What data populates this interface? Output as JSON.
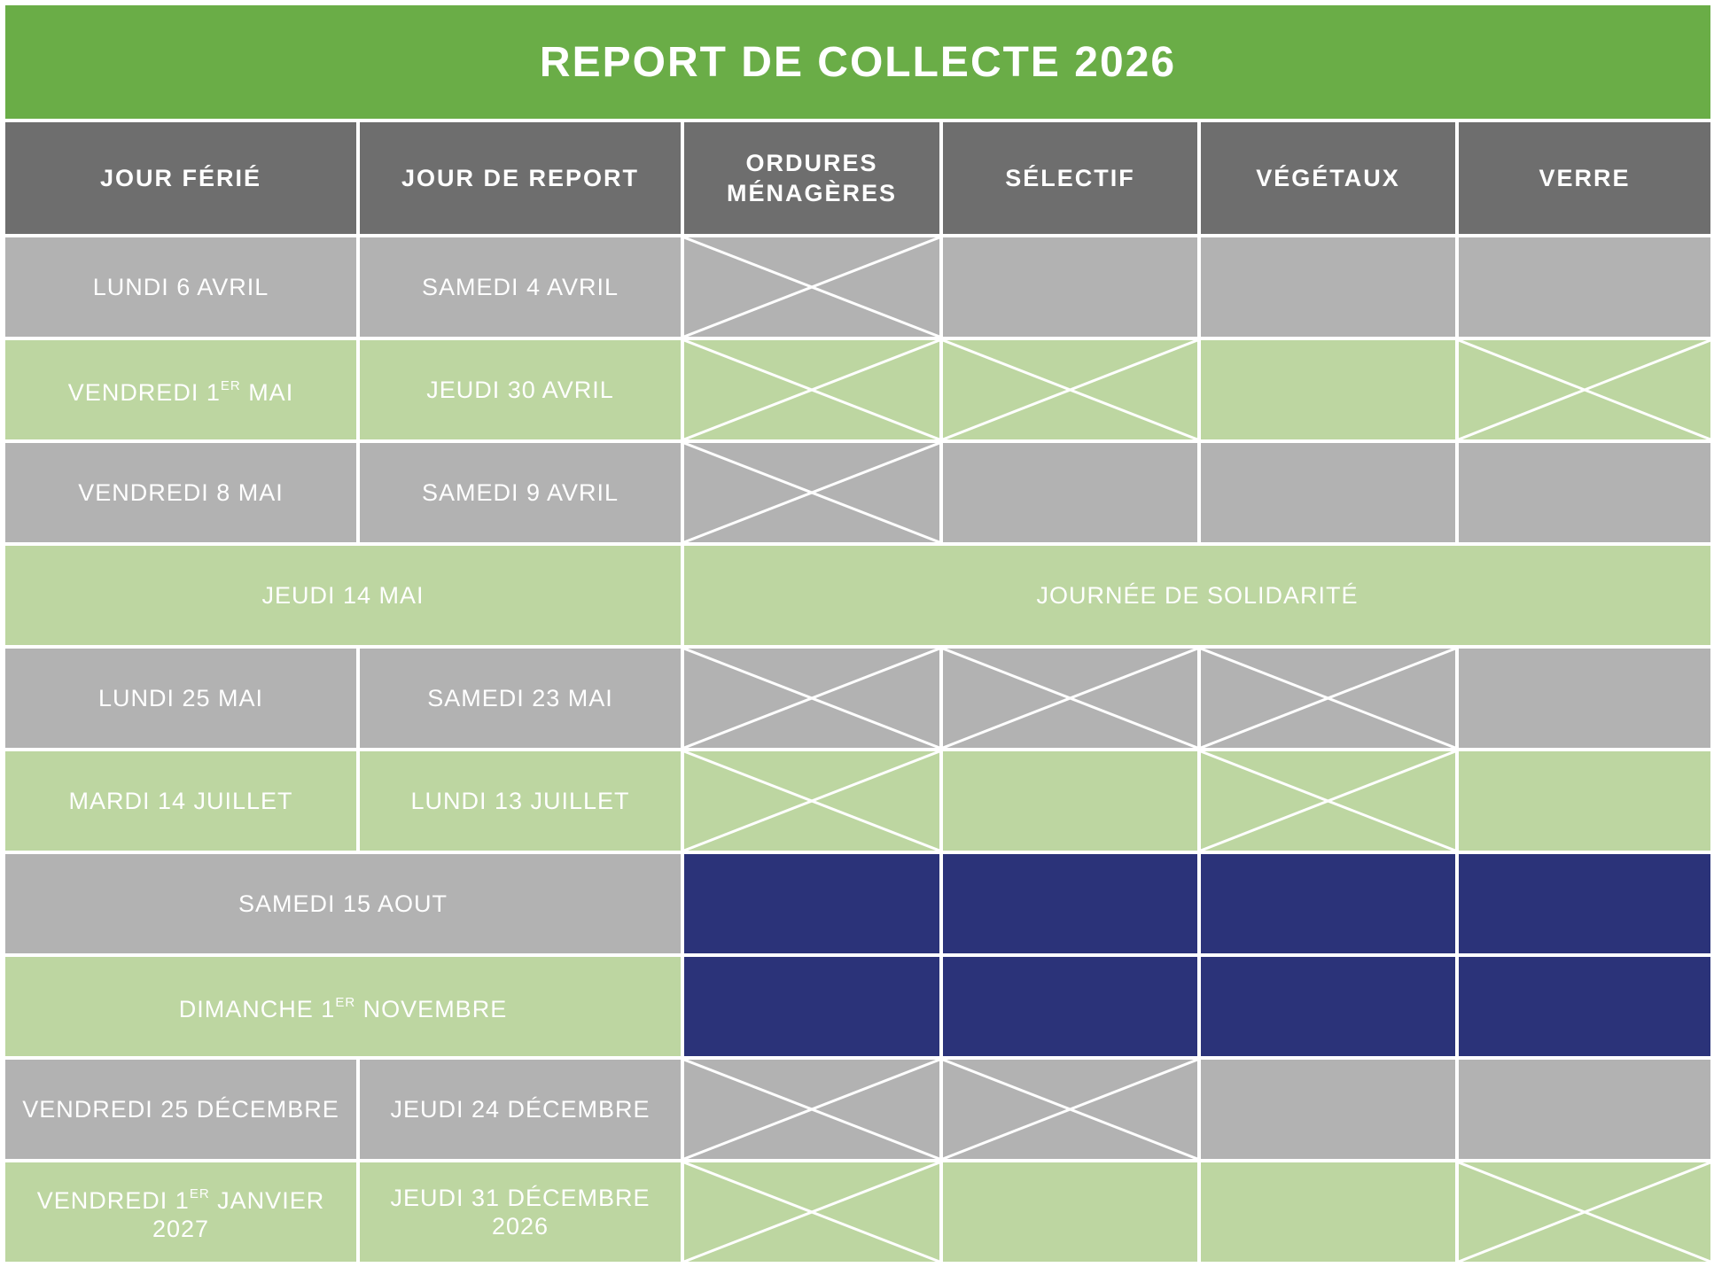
{
  "title": "REPORT DE COLLECTE 2026",
  "colors": {
    "banner": "#6aad47",
    "header": "#6e6e6e",
    "row_gray": "#b2b2b2",
    "row_green": "#bdd6a1",
    "no_collection": "#2b3379",
    "text": "#ffffff"
  },
  "headers": {
    "jour_ferie": "JOUR FÉRIÉ",
    "jour_report": "JOUR DE REPORT",
    "ordures": "ORDURES MÉNAGÈRES",
    "selectif": "SÉLECTIF",
    "vegetaux": "VÉGÉTAUX",
    "verre": "VERRE"
  },
  "rows": [
    {
      "ferie": "LUNDI 6 AVRIL",
      "report": "SAMEDI 4 AVRIL",
      "marks": [
        true,
        false,
        false,
        false
      ]
    },
    {
      "ferie_a": "VENDREDI 1",
      "ferie_sup": "ER",
      "ferie_b": " MAI",
      "report": "JEUDI 30 AVRIL",
      "marks": [
        true,
        true,
        false,
        true
      ]
    },
    {
      "ferie": "VENDREDI 8 MAI",
      "report": "SAMEDI 9 AVRIL",
      "marks": [
        true,
        false,
        false,
        false
      ]
    },
    {
      "ferie": "JEUDI 14 MAI",
      "note": "JOURNÉE DE SOLIDARITÉ"
    },
    {
      "ferie": "LUNDI 25 MAI",
      "report": "SAMEDI 23 MAI",
      "marks": [
        true,
        true,
        true,
        false
      ]
    },
    {
      "ferie": "MARDI 14 JUILLET",
      "report": "LUNDI 13 JUILLET",
      "marks": [
        true,
        false,
        true,
        false
      ]
    },
    {
      "ferie": "SAMEDI 15 AOUT",
      "no_collection": true
    },
    {
      "ferie_a": "DIMANCHE 1",
      "ferie_sup": "ER",
      "ferie_b": " NOVEMBRE",
      "no_collection": true
    },
    {
      "ferie": "VENDREDI 25 DÉCEMBRE",
      "report": "JEUDI 24 DÉCEMBRE",
      "marks": [
        true,
        true,
        false,
        false
      ]
    },
    {
      "ferie_a": "VENDREDI 1",
      "ferie_sup": "ER",
      "ferie_b": " JANVIER 2027",
      "report": "JEUDI 31 DÉCEMBRE 2026",
      "marks": [
        true,
        false,
        false,
        true
      ]
    }
  ]
}
